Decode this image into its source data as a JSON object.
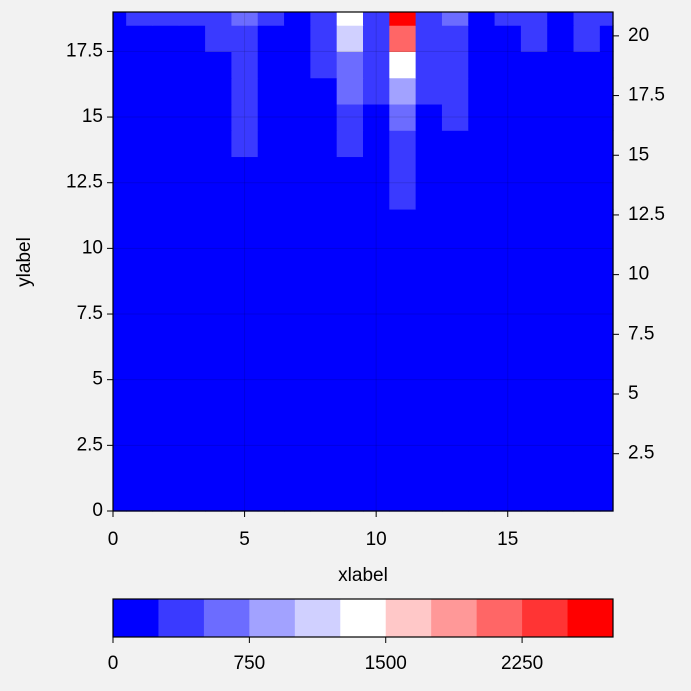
{
  "chart_data": {
    "type": "contour",
    "xlabel": "xlabel",
    "ylabel": "ylabel",
    "x": [
      0,
      1,
      2,
      3,
      4,
      5,
      6,
      7,
      8,
      9,
      10,
      11,
      12,
      13,
      14,
      15,
      16,
      17,
      18,
      19
    ],
    "y": [
      0,
      10,
      13,
      14,
      15,
      16,
      17,
      18,
      19
    ],
    "z": [
      [
        0,
        0,
        0,
        0,
        0,
        0,
        0,
        0,
        0,
        0,
        0,
        0,
        0,
        0,
        0,
        0,
        0,
        0,
        0,
        0
      ],
      [
        50,
        50,
        50,
        50,
        50,
        50,
        50,
        50,
        50,
        50,
        50,
        50,
        50,
        50,
        50,
        50,
        50,
        50,
        50,
        50
      ],
      [
        150,
        150,
        150,
        150,
        170,
        240,
        200,
        150,
        180,
        230,
        200,
        300,
        200,
        180,
        160,
        150,
        150,
        150,
        150,
        150
      ],
      [
        150,
        150,
        150,
        150,
        180,
        260,
        200,
        160,
        200,
        270,
        220,
        420,
        220,
        200,
        170,
        160,
        160,
        160,
        150,
        150
      ],
      [
        160,
        160,
        160,
        160,
        190,
        280,
        210,
        170,
        220,
        360,
        240,
        600,
        240,
        270,
        180,
        170,
        170,
        180,
        160,
        160
      ],
      [
        170,
        170,
        170,
        170,
        200,
        300,
        220,
        180,
        240,
        520,
        260,
        900,
        260,
        320,
        190,
        180,
        190,
        210,
        170,
        170
      ],
      [
        180,
        180,
        180,
        190,
        220,
        330,
        230,
        190,
        270,
        720,
        280,
        1400,
        280,
        380,
        200,
        200,
        220,
        230,
        190,
        200
      ],
      [
        200,
        210,
        220,
        230,
        250,
        420,
        240,
        200,
        300,
        1000,
        300,
        2200,
        320,
        450,
        220,
        240,
        260,
        200,
        250,
        240
      ],
      [
        240,
        250,
        260,
        270,
        290,
        600,
        260,
        210,
        320,
        1350,
        320,
        2700,
        350,
        560,
        240,
        280,
        300,
        230,
        270,
        260
      ]
    ],
    "levels": [
      0,
      250,
      500,
      750,
      1000,
      1250,
      1500,
      1750,
      2000,
      2250,
      2500,
      2750
    ],
    "colors": [
      "#0000ff",
      "#3a3aff",
      "#6c6cff",
      "#a2a2ff",
      "#d0d0ff",
      "#ffffff",
      "#ffc8c8",
      "#ff9898",
      "#ff6666",
      "#ff3434",
      "#ff0000"
    ],
    "cbarticks": [
      0,
      750,
      1500,
      2250
    ],
    "xlim": [
      0,
      19
    ],
    "xticks": [
      0,
      5,
      10,
      15
    ],
    "ylim": [
      0,
      19
    ],
    "yticks": [
      0,
      2.5,
      5,
      7.5,
      10,
      12.5,
      15,
      17.5
    ],
    "y2lim": [
      0.1,
      21
    ],
    "y2ticks": [
      2.5,
      5,
      7.5,
      10,
      12.5,
      15,
      17.5,
      20
    ],
    "grid": true
  }
}
